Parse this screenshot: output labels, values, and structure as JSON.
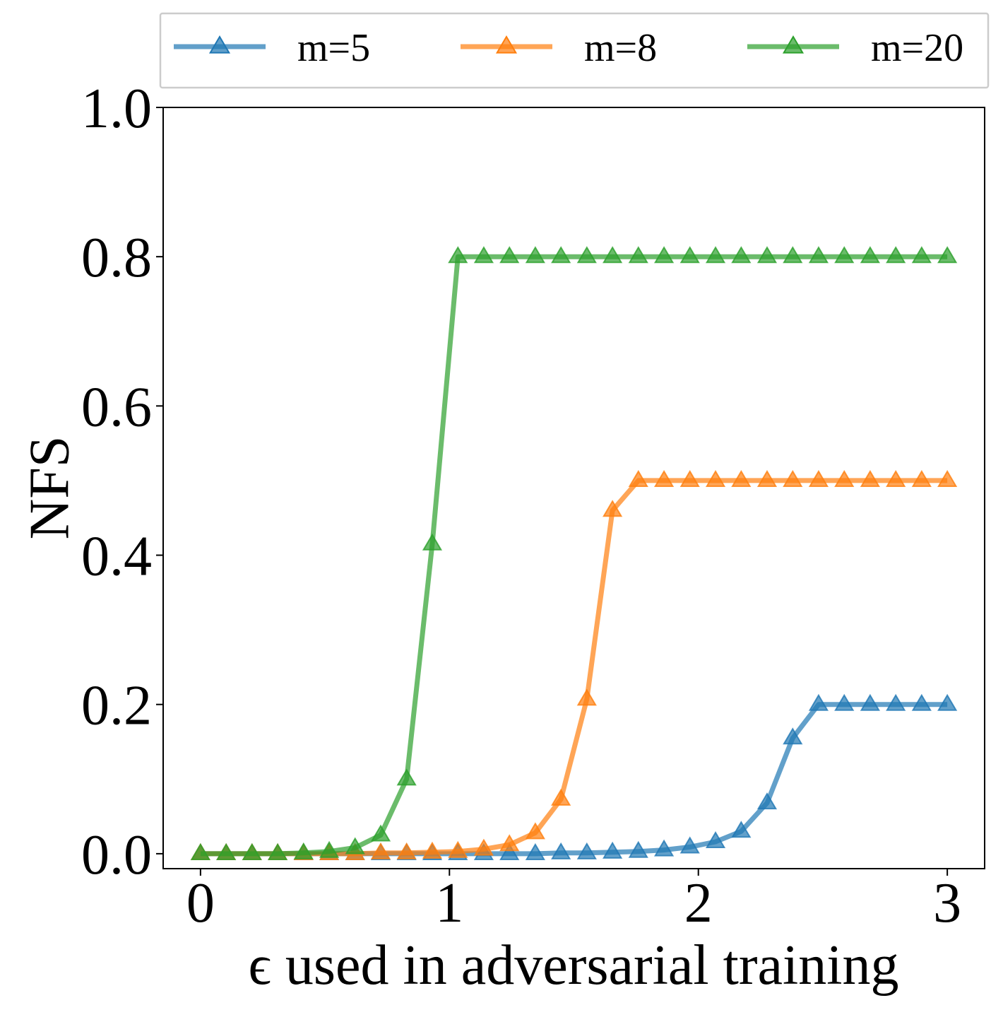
{
  "chart_data": {
    "type": "line",
    "title": "",
    "xlabel": "ϵ used in adversarial training",
    "ylabel": "NFS",
    "xlim": [
      -0.15,
      3.15
    ],
    "ylim": [
      -0.02,
      1.0
    ],
    "xticks": [
      0,
      1,
      2,
      3
    ],
    "xtick_labels": [
      "0",
      "1",
      "2",
      "3"
    ],
    "yticks": [
      0.0,
      0.2,
      0.4,
      0.6,
      0.8,
      1.0
    ],
    "ytick_labels": [
      "0.0",
      "0.2",
      "0.4",
      "0.6",
      "0.8",
      "1.0"
    ],
    "grid": false,
    "legend_position": "top, above plot, 3 columns",
    "x": [
      0.0,
      0.103,
      0.207,
      0.31,
      0.414,
      0.517,
      0.621,
      0.724,
      0.828,
      0.931,
      1.034,
      1.138,
      1.241,
      1.345,
      1.448,
      1.552,
      1.655,
      1.759,
      1.862,
      1.966,
      2.069,
      2.172,
      2.276,
      2.379,
      2.483,
      2.586,
      2.69,
      2.793,
      2.897,
      3.0
    ],
    "series": [
      {
        "name": "m=5",
        "color": "#1f77b4",
        "values": [
          0.0,
          0.0,
          0.0,
          0.0,
          0.0,
          0.0,
          0.0,
          0.0,
          0.0,
          0.0,
          0.0,
          0.0,
          0.0,
          0.0,
          0.001,
          0.001,
          0.002,
          0.003,
          0.005,
          0.009,
          0.016,
          0.03,
          0.068,
          0.155,
          0.2,
          0.2,
          0.2,
          0.2,
          0.2,
          0.2
        ]
      },
      {
        "name": "m=8",
        "color": "#ff7f0e",
        "values": [
          0.0,
          0.0,
          0.0,
          0.0,
          0.0,
          0.0,
          0.0,
          0.001,
          0.001,
          0.002,
          0.003,
          0.006,
          0.012,
          0.028,
          0.073,
          0.207,
          0.46,
          0.5,
          0.5,
          0.5,
          0.5,
          0.5,
          0.5,
          0.5,
          0.5,
          0.5,
          0.5,
          0.5,
          0.5,
          0.5
        ]
      },
      {
        "name": "m=20",
        "color": "#2ca02c",
        "values": [
          0.0,
          0.0,
          0.0,
          0.0,
          0.001,
          0.003,
          0.008,
          0.025,
          0.1,
          0.415,
          0.8,
          0.8,
          0.8,
          0.8,
          0.8,
          0.8,
          0.8,
          0.8,
          0.8,
          0.8,
          0.8,
          0.8,
          0.8,
          0.8,
          0.8,
          0.8,
          0.8,
          0.8,
          0.8,
          0.8
        ]
      }
    ]
  }
}
